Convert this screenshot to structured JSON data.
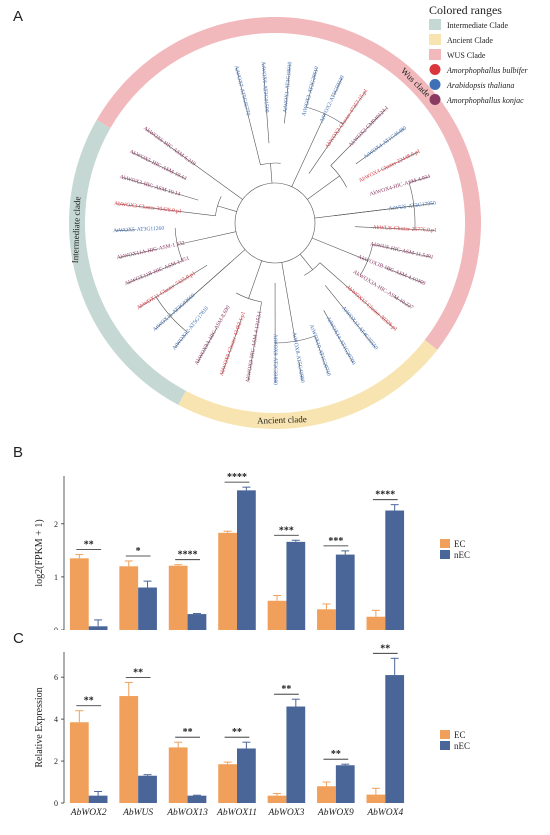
{
  "figure": {
    "panel_a_letter": "A",
    "panel_b_letter": "B",
    "panel_c_letter": "C"
  },
  "tree": {
    "legend_title": "Colored ranges",
    "legend_items": [
      {
        "label": "Intermediate Clade",
        "color": "#c5d8d3",
        "shape": "square",
        "italic": false
      },
      {
        "label": "Ancient Clade",
        "color": "#f8e4b0",
        "shape": "square",
        "italic": false
      },
      {
        "label": "WUS Clade",
        "color": "#f2b9bd",
        "shape": "square",
        "italic": false
      },
      {
        "label": "Amorphophallus bulbifer",
        "color": "#d9363e",
        "shape": "circle",
        "italic": true
      },
      {
        "label": "Arabidopsis thaliana",
        "color": "#3f6fb5",
        "shape": "circle",
        "italic": true
      },
      {
        "label": "Amorphophallus konjac",
        "color": "#8b3a62",
        "shape": "circle",
        "italic": true
      }
    ],
    "clade_labels": {
      "wus": "Wus clade",
      "intermediate": "Intermediate clade",
      "ancient": "Ancient clade"
    },
    "clade_colors": {
      "wus": "#f2b9bd",
      "intermediate": "#c5d8d3",
      "ancient": "#f8e4b0"
    },
    "leaves": [
      {
        "label": "AtWOX7-AT5G05770",
        "color": "#3f6fb5"
      },
      {
        "label": "AtWOX6-AT2G01500",
        "color": "#3f6fb5"
      },
      {
        "label": "AtWOX1-AT3G18010",
        "color": "#3f6fb5"
      },
      {
        "label": "AtWOX3-AT2G28610",
        "color": "#3f6fb5"
      },
      {
        "label": "AtWOX2-AT5G59340",
        "color": "#3f6fb5"
      },
      {
        "label": "AbWOX2-Cluster-47357.15.p1",
        "color": "#d9363e"
      },
      {
        "label": "AkWOX2-CM040124.1",
        "color": "#8b3a62"
      },
      {
        "label": "AtWOX4-AT1G46480",
        "color": "#3f6fb5"
      },
      {
        "label": "AbWOX4-Cluster-22448.0.p1",
        "color": "#d9363e"
      },
      {
        "label": "AkWOX4-HIC-ASM-4.934",
        "color": "#8b3a62"
      },
      {
        "label": "AtWUS-AT2G17950",
        "color": "#3f6fb5"
      },
      {
        "label": "AbWUS-Cluster-25776.0.p1",
        "color": "#d9363e"
      },
      {
        "label": "AkWUS-HIC-ASM-11.5491",
        "color": "#8b3a62"
      },
      {
        "label": "AkWOX3B-HIC-ASM-4.10469",
        "color": "#8b3a62"
      },
      {
        "label": "AkWOX3A-HIC-ASM-10.227",
        "color": "#8b3a62"
      },
      {
        "label": "AbWOX13-Cluster-30328.p1",
        "color": "#d9363e"
      },
      {
        "label": "AtWOX13-AT4G35550",
        "color": "#3f6fb5"
      },
      {
        "label": "AtWOX14-AT1G20700",
        "color": "#3f6fb5"
      },
      {
        "label": "AtWOX10-AT1G20710",
        "color": "#3f6fb5"
      },
      {
        "label": "AtWOX8-AT5G45980",
        "color": "#3f6fb5"
      },
      {
        "label": "AtWOX9-AT2G33880",
        "color": "#3f6fb5"
      },
      {
        "label": "AkWOX9-HIC-ASM-4.13153.1",
        "color": "#8b3a62"
      },
      {
        "label": "AbWOX9-Cluster-43492.1.p1",
        "color": "#d9363e"
      },
      {
        "label": "AkWOX9A-HIC-ASM-8.690",
        "color": "#8b3a62"
      },
      {
        "label": "AtWOX12-AT5G17810",
        "color": "#3f6fb5"
      },
      {
        "label": "AtWOX11-AT3G03660",
        "color": "#3f6fb5"
      },
      {
        "label": "AbWOX11-Cluster-7425.0.p1",
        "color": "#d9363e"
      },
      {
        "label": "AkWOX11B-HIC-ASM-1.851",
        "color": "#8b3a62"
      },
      {
        "label": "AkWOX11A-HIC-ASM-1.532",
        "color": "#8b3a62"
      },
      {
        "label": "AtWOX5-AT3G11260",
        "color": "#3f6fb5"
      },
      {
        "label": "AbWOX3-Cluster-30428.0.p1",
        "color": "#d9363e"
      },
      {
        "label": "AkWOX3-HIC-ASM-10.14",
        "color": "#8b3a62"
      },
      {
        "label": "AkWOX5-HIC-ASM-10.13",
        "color": "#8b3a62"
      },
      {
        "label": "AkWOX6-HIC-ASM-6.219",
        "color": "#8b3a62"
      }
    ]
  },
  "chart_data": [
    {
      "type": "bar",
      "panel": "B",
      "categories": [
        "AbWOX2",
        "AbWUS",
        "AbWOX13",
        "AbWOX11",
        "AbWOX3",
        "AbWOX9",
        "AbWOX4"
      ],
      "series": [
        {
          "name": "EC",
          "color": "#f0a05a",
          "values": [
            1.35,
            1.2,
            1.21,
            1.83,
            0.55,
            0.39,
            0.25
          ],
          "errors": [
            0.07,
            0.1,
            0.02,
            0.03,
            0.1,
            0.1,
            0.12
          ]
        },
        {
          "name": "nEC",
          "color": "#4a6699",
          "values": [
            0.07,
            0.8,
            0.3,
            2.63,
            1.66,
            1.42,
            2.25
          ],
          "errors": [
            0.12,
            0.12,
            0.01,
            0.06,
            0.03,
            0.07,
            0.11
          ]
        }
      ],
      "significance": [
        "**",
        "*",
        "****",
        "****",
        "***",
        "***",
        "****"
      ],
      "ylabel": "log2(FPKM + 1)",
      "ylim": [
        0,
        2.9
      ],
      "yticks": [
        0,
        1,
        2
      ],
      "legend": "right"
    },
    {
      "type": "bar",
      "panel": "C",
      "categories": [
        "AbWOX2",
        "AbWUS",
        "AbWOX13",
        "AbWOX11",
        "AbWOX3",
        "AbWOX9",
        "AbWOX4"
      ],
      "series": [
        {
          "name": "EC",
          "color": "#f0a05a",
          "values": [
            3.85,
            5.1,
            2.65,
            1.85,
            0.35,
            0.8,
            0.4
          ],
          "errors": [
            0.55,
            0.65,
            0.25,
            0.1,
            0.1,
            0.2,
            0.3
          ]
        },
        {
          "name": "nEC",
          "color": "#4a6699",
          "values": [
            0.35,
            1.3,
            0.35,
            2.6,
            4.6,
            1.8,
            6.1
          ],
          "errors": [
            0.2,
            0.05,
            0.02,
            0.3,
            0.35,
            0.05,
            0.8
          ]
        }
      ],
      "significance": [
        "**",
        "**",
        "**",
        "**",
        "**",
        "**",
        "**"
      ],
      "ylabel": "Relative Expression",
      "ylim": [
        0,
        7.2
      ],
      "yticks": [
        0,
        2,
        4,
        6
      ],
      "legend": "right"
    }
  ]
}
